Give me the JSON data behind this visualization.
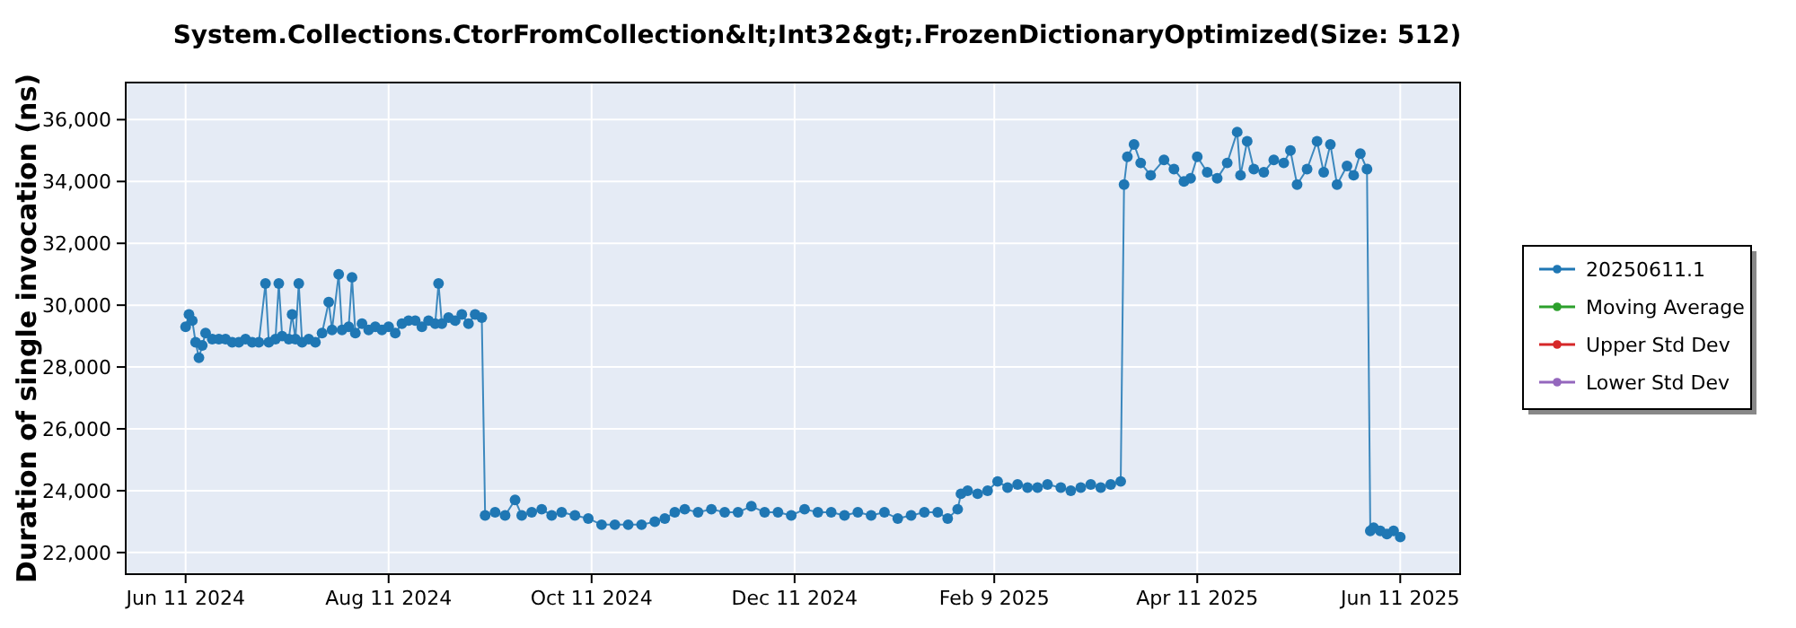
{
  "chart_data": {
    "type": "line",
    "title": "System.Collections.CtorFromCollection&lt;Int32&gt;.FrozenDictionaryOptimized(Size: 512)",
    "ylabel": "Duration of single invocation (ns)",
    "xlim": [
      "2024-05-24",
      "2025-06-29"
    ],
    "xticks": [
      {
        "value": "2024-06-11",
        "label": "Jun 11 2024"
      },
      {
        "value": "2024-08-11",
        "label": "Aug 11 2024"
      },
      {
        "value": "2024-10-11",
        "label": "Oct 11 2024"
      },
      {
        "value": "2024-12-11",
        "label": "Dec 11 2024"
      },
      {
        "value": "2025-02-09",
        "label": "Feb 9 2025"
      },
      {
        "value": "2025-04-11",
        "label": "Apr 11 2025"
      },
      {
        "value": "2025-06-11",
        "label": "Jun 11 2025"
      }
    ],
    "ylim": [
      21300,
      37200
    ],
    "yticks": [
      {
        "value": 22000,
        "label": "22,000"
      },
      {
        "value": 24000,
        "label": "24,000"
      },
      {
        "value": 26000,
        "label": "26,000"
      },
      {
        "value": 28000,
        "label": "28,000"
      },
      {
        "value": 30000,
        "label": "30,000"
      },
      {
        "value": 32000,
        "label": "32,000"
      },
      {
        "value": 34000,
        "label": "34,000"
      },
      {
        "value": 36000,
        "label": "36,000"
      }
    ],
    "grid": true,
    "legend": "right",
    "marker": "circle",
    "line_style": "solid",
    "series": [
      {
        "name": "20250611.1",
        "color": "#1f77b4",
        "x": [
          "2024-06-11",
          "2024-06-12",
          "2024-06-13",
          "2024-06-14",
          "2024-06-15",
          "2024-06-16",
          "2024-06-17",
          "2024-06-19",
          "2024-06-21",
          "2024-06-23",
          "2024-06-25",
          "2024-06-27",
          "2024-06-29",
          "2024-07-01",
          "2024-07-03",
          "2024-07-05",
          "2024-07-06",
          "2024-07-08",
          "2024-07-09",
          "2024-07-10",
          "2024-07-12",
          "2024-07-13",
          "2024-07-14",
          "2024-07-15",
          "2024-07-16",
          "2024-07-18",
          "2024-07-20",
          "2024-07-22",
          "2024-07-24",
          "2024-07-25",
          "2024-07-27",
          "2024-07-28",
          "2024-07-30",
          "2024-07-31",
          "2024-08-01",
          "2024-08-03",
          "2024-08-05",
          "2024-08-07",
          "2024-08-09",
          "2024-08-11",
          "2024-08-13",
          "2024-08-15",
          "2024-08-17",
          "2024-08-19",
          "2024-08-21",
          "2024-08-23",
          "2024-08-25",
          "2024-08-26",
          "2024-08-27",
          "2024-08-29",
          "2024-08-31",
          "2024-09-02",
          "2024-09-04",
          "2024-09-06",
          "2024-09-08",
          "2024-09-09",
          "2024-09-12",
          "2024-09-15",
          "2024-09-18",
          "2024-09-20",
          "2024-09-23",
          "2024-09-26",
          "2024-09-29",
          "2024-10-02",
          "2024-10-06",
          "2024-10-10",
          "2024-10-14",
          "2024-10-18",
          "2024-10-22",
          "2024-10-26",
          "2024-10-30",
          "2024-11-02",
          "2024-11-05",
          "2024-11-08",
          "2024-11-12",
          "2024-11-16",
          "2024-11-20",
          "2024-11-24",
          "2024-11-28",
          "2024-12-02",
          "2024-12-06",
          "2024-12-10",
          "2024-12-14",
          "2024-12-18",
          "2024-12-22",
          "2024-12-26",
          "2024-12-30",
          "2025-01-03",
          "2025-01-07",
          "2025-01-11",
          "2025-01-15",
          "2025-01-19",
          "2025-01-23",
          "2025-01-26",
          "2025-01-29",
          "2025-01-30",
          "2025-02-01",
          "2025-02-04",
          "2025-02-07",
          "2025-02-10",
          "2025-02-13",
          "2025-02-16",
          "2025-02-19",
          "2025-02-22",
          "2025-02-25",
          "2025-03-01",
          "2025-03-04",
          "2025-03-07",
          "2025-03-10",
          "2025-03-13",
          "2025-03-16",
          "2025-03-19",
          "2025-03-20",
          "2025-03-21",
          "2025-03-23",
          "2025-03-25",
          "2025-03-28",
          "2025-04-01",
          "2025-04-04",
          "2025-04-07",
          "2025-04-09",
          "2025-04-11",
          "2025-04-14",
          "2025-04-17",
          "2025-04-20",
          "2025-04-23",
          "2025-04-24",
          "2025-04-26",
          "2025-04-28",
          "2025-05-01",
          "2025-05-04",
          "2025-05-07",
          "2025-05-09",
          "2025-05-11",
          "2025-05-14",
          "2025-05-17",
          "2025-05-19",
          "2025-05-21",
          "2025-05-23",
          "2025-05-26",
          "2025-05-28",
          "2025-05-30",
          "2025-06-01",
          "2025-06-02",
          "2025-06-03",
          "2025-06-05",
          "2025-06-07",
          "2025-06-09",
          "2025-06-11"
        ],
        "values": [
          29300,
          29700,
          29500,
          28800,
          28300,
          28700,
          29100,
          28900,
          28900,
          28900,
          28800,
          28800,
          28900,
          28800,
          28800,
          30700,
          28800,
          28900,
          30700,
          29000,
          28900,
          29700,
          28900,
          30700,
          28800,
          28900,
          28800,
          29100,
          30100,
          29200,
          31000,
          29200,
          29300,
          30900,
          29100,
          29400,
          29200,
          29300,
          29200,
          29300,
          29100,
          29400,
          29500,
          29500,
          29300,
          29500,
          29400,
          30700,
          29400,
          29600,
          29500,
          29700,
          29400,
          29700,
          29600,
          23200,
          23300,
          23200,
          23700,
          23200,
          23300,
          23400,
          23200,
          23300,
          23200,
          23100,
          22900,
          22900,
          22900,
          22900,
          23000,
          23100,
          23300,
          23400,
          23300,
          23400,
          23300,
          23300,
          23500,
          23300,
          23300,
          23200,
          23400,
          23300,
          23300,
          23200,
          23300,
          23200,
          23300,
          23100,
          23200,
          23300,
          23300,
          23100,
          23400,
          23900,
          24000,
          23900,
          24000,
          24300,
          24100,
          24200,
          24100,
          24100,
          24200,
          24100,
          24000,
          24100,
          24200,
          24100,
          24200,
          24300,
          33900,
          34800,
          35200,
          34600,
          34200,
          34700,
          34400,
          34000,
          34100,
          34800,
          34300,
          34100,
          34600,
          35600,
          34200,
          35300,
          34400,
          34300,
          34700,
          34600,
          35000,
          33900,
          34400,
          35300,
          34300,
          35200,
          33900,
          34500,
          34200,
          34900,
          34400,
          22700,
          22800,
          22700,
          22600,
          22700,
          22500
        ]
      },
      {
        "name": "Moving Average",
        "color": "#2ca02c"
      },
      {
        "name": "Upper Std Dev",
        "color": "#d62728"
      },
      {
        "name": "Lower Std Dev",
        "color": "#9467bd"
      }
    ]
  }
}
